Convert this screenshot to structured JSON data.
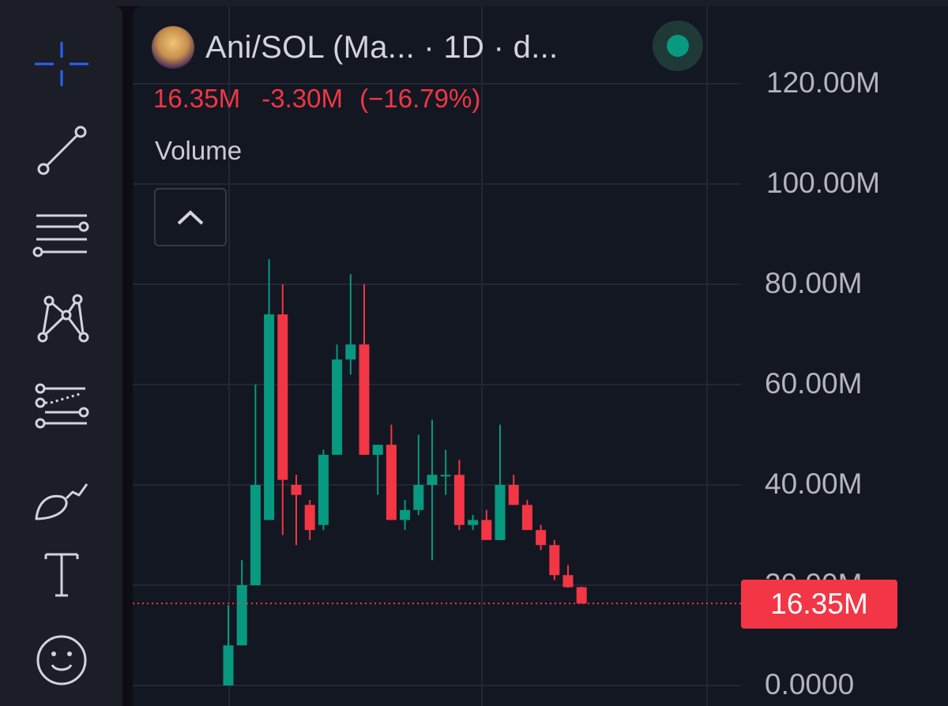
{
  "toolbar": {
    "tools": [
      {
        "name": "crosshair-icon"
      },
      {
        "name": "trend-line-icon"
      },
      {
        "name": "horizontal-lines-icon"
      },
      {
        "name": "pattern-icon"
      },
      {
        "name": "prediction-icon"
      },
      {
        "name": "brush-icon"
      },
      {
        "name": "text-tool-icon"
      },
      {
        "name": "emoji-icon"
      }
    ]
  },
  "header": {
    "title": "Ani/SOL (Ma...  · 1D · d...",
    "status_color": "#089981"
  },
  "values": {
    "last": "16.35M",
    "change": "-3.30M",
    "change_pct": "(−16.79%)"
  },
  "pane": {
    "label": "Volume"
  },
  "price_scale": {
    "labels": [
      "120.00M",
      "100.00M",
      "80.00M",
      "60.00M",
      "40.00M",
      "20.00M",
      "0.0000"
    ],
    "last_price_label": "16.35M"
  },
  "colors": {
    "up": "#089981",
    "down": "#f23645",
    "accent": "#2962ff"
  },
  "chart_data": {
    "type": "candlestick",
    "ylim": [
      0,
      120
    ],
    "unit": "M",
    "last_value": 16.35,
    "candles": [
      {
        "o": 0.0,
        "h": 16.0,
        "l": 0.0,
        "c": 8.0
      },
      {
        "o": 8.0,
        "h": 25.0,
        "l": 8.0,
        "c": 20.0
      },
      {
        "o": 20.0,
        "h": 60.0,
        "l": 20.0,
        "c": 40.0
      },
      {
        "o": 33.0,
        "h": 85.0,
        "l": 33.0,
        "c": 74.0
      },
      {
        "o": 74.0,
        "h": 80.0,
        "l": 30.0,
        "c": 41.0
      },
      {
        "o": 40.0,
        "h": 42.0,
        "l": 28.0,
        "c": 38.0
      },
      {
        "o": 36.0,
        "h": 37.0,
        "l": 29.0,
        "c": 31.0
      },
      {
        "o": 32.0,
        "h": 47.0,
        "l": 31.0,
        "c": 46.0
      },
      {
        "o": 46.0,
        "h": 68.0,
        "l": 46.0,
        "c": 65.0
      },
      {
        "o": 65.0,
        "h": 82.0,
        "l": 62.0,
        "c": 68.0
      },
      {
        "o": 68.0,
        "h": 80.0,
        "l": 46.0,
        "c": 46.0
      },
      {
        "o": 46.0,
        "h": 48.0,
        "l": 38.0,
        "c": 48.0
      },
      {
        "o": 48.0,
        "h": 52.0,
        "l": 33.0,
        "c": 33.0
      },
      {
        "o": 33.0,
        "h": 37.0,
        "l": 31.0,
        "c": 35.0
      },
      {
        "o": 35.0,
        "h": 50.0,
        "l": 34.0,
        "c": 40.0
      },
      {
        "o": 40.0,
        "h": 53.0,
        "l": 25.0,
        "c": 42.0
      },
      {
        "o": 42.0,
        "h": 47.0,
        "l": 38.0,
        "c": 42.0
      },
      {
        "o": 42.0,
        "h": 45.0,
        "l": 31.0,
        "c": 32.0
      },
      {
        "o": 32.0,
        "h": 34.0,
        "l": 31.0,
        "c": 33.0
      },
      {
        "o": 33.0,
        "h": 35.0,
        "l": 29.0,
        "c": 29.0
      },
      {
        "o": 29.0,
        "h": 52.0,
        "l": 29.0,
        "c": 40.0
      },
      {
        "o": 40.0,
        "h": 42.0,
        "l": 36.0,
        "c": 36.0
      },
      {
        "o": 36.0,
        "h": 37.0,
        "l": 31.0,
        "c": 31.0
      },
      {
        "o": 31.0,
        "h": 32.0,
        "l": 27.0,
        "c": 28.0
      },
      {
        "o": 28.0,
        "h": 29.0,
        "l": 21.0,
        "c": 22.0
      },
      {
        "o": 22.0,
        "h": 24.0,
        "l": 19.5,
        "c": 19.6
      },
      {
        "o": 19.6,
        "h": 19.7,
        "l": 16.3,
        "c": 16.35
      }
    ]
  }
}
